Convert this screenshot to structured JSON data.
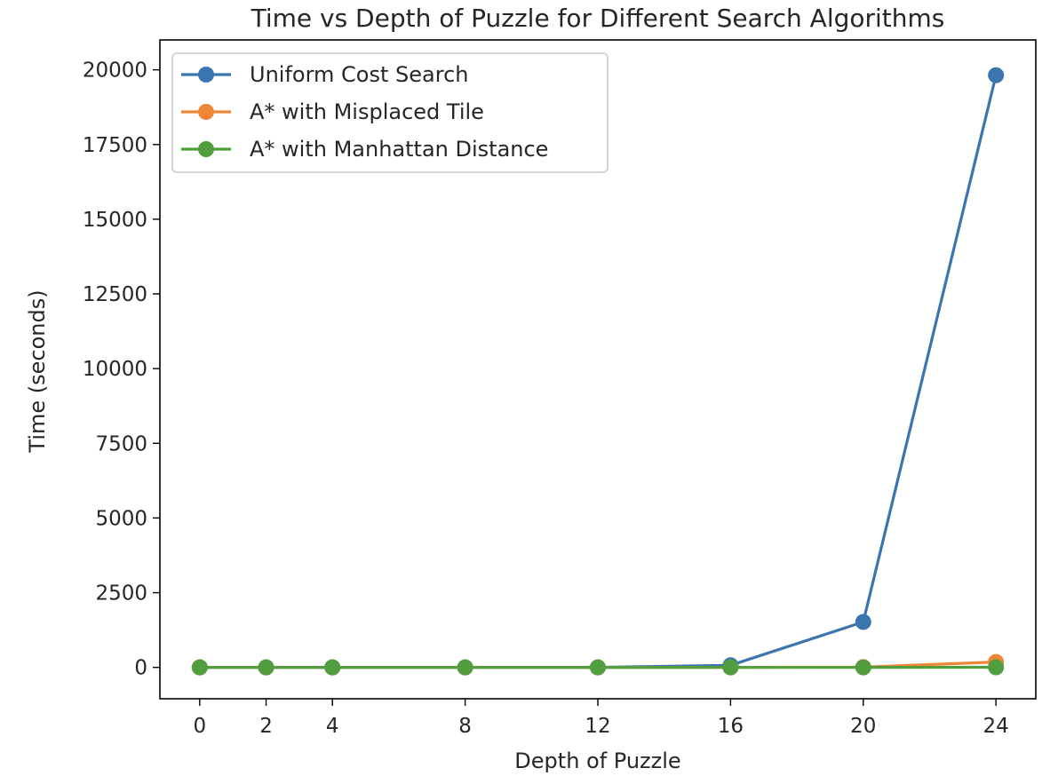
{
  "chart_data": {
    "type": "line",
    "title": "Time vs Depth of Puzzle for Different Search Algorithms",
    "xlabel": "Depth of Puzzle",
    "ylabel": "Time (seconds)",
    "x": [
      0,
      2,
      4,
      8,
      12,
      16,
      20,
      24
    ],
    "x_ticks": [
      "0",
      "2",
      "4",
      "8",
      "12",
      "16",
      "20",
      "24"
    ],
    "y_ticks": [
      "0",
      "2500",
      "5000",
      "7500",
      "10000",
      "12500",
      "15000",
      "17500",
      "20000"
    ],
    "xlim": [
      -1.2,
      25.2
    ],
    "ylim": [
      -1050,
      21000
    ],
    "grid": false,
    "legend_position": "top-left",
    "series": [
      {
        "name": "Uniform Cost Search",
        "color": "#3b75af",
        "values": [
          0,
          0,
          0,
          0,
          2,
          70,
          1520,
          19820
        ]
      },
      {
        "name": "A* with Misplaced Tile",
        "color": "#ef8636",
        "values": [
          0,
          0,
          0,
          0,
          0,
          0,
          10,
          180
        ]
      },
      {
        "name": "A* with Manhattan Distance",
        "color": "#519e3e",
        "values": [
          0,
          0,
          0,
          0,
          0,
          0,
          0,
          5
        ]
      }
    ]
  }
}
